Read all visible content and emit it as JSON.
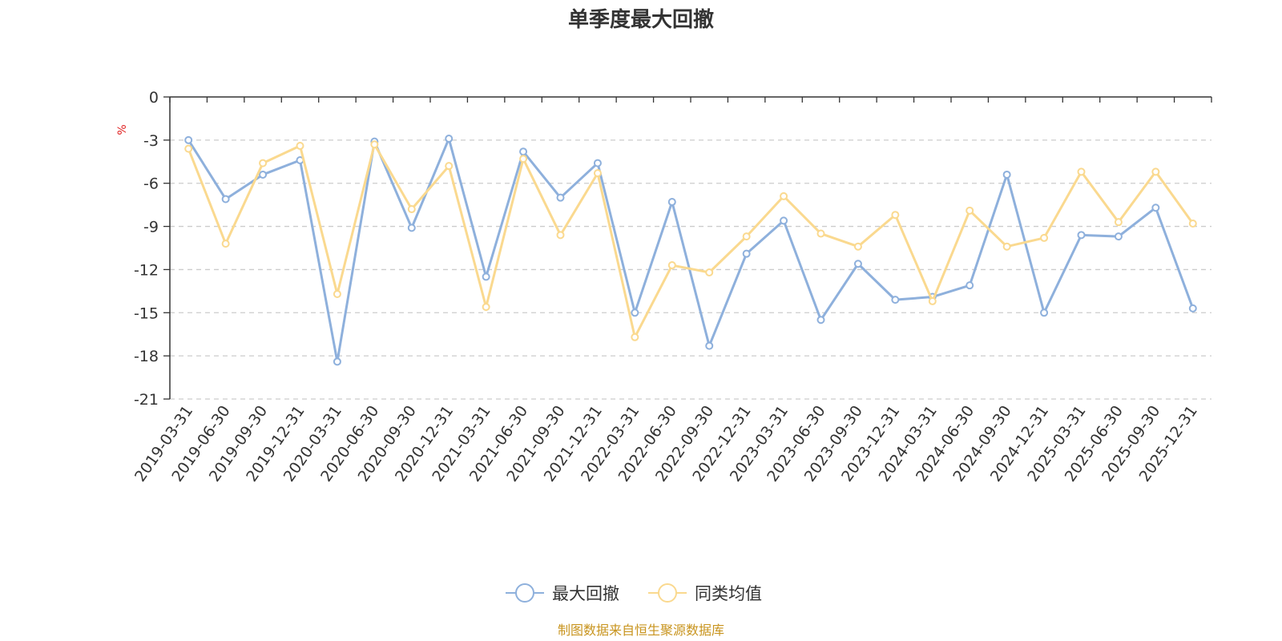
{
  "chart_data": {
    "type": "line",
    "title": "单季度最大回撤",
    "ylabel": "%",
    "ylim": [
      -21,
      0
    ],
    "yticks": [
      0,
      -3,
      -6,
      -9,
      -12,
      -15,
      -18,
      -21
    ],
    "grid": true,
    "legend_position": "bottom-center",
    "categories": [
      "2019-03-31",
      "2019-06-30",
      "2019-09-30",
      "2019-12-31",
      "2020-03-31",
      "2020-06-30",
      "2020-09-30",
      "2020-12-31",
      "2021-03-31",
      "2021-06-30",
      "2021-09-30",
      "2021-12-31",
      "2022-03-31",
      "2022-06-30",
      "2022-09-30",
      "2022-12-31",
      "2023-03-31",
      "2023-06-30",
      "2023-09-30",
      "2023-12-31",
      "2024-03-31",
      "2024-06-30",
      "2024-09-30",
      "2024-12-31",
      "2025-03-31",
      "2025-06-30",
      "2025-09-30",
      "2025-12-31"
    ],
    "series": [
      {
        "name": "最大回撤",
        "color": "#8eb0dc",
        "values": [
          -3.0,
          -7.1,
          -5.4,
          -4.4,
          -18.4,
          -3.1,
          -9.1,
          -2.9,
          -12.5,
          -3.8,
          -7.0,
          -4.6,
          -15.0,
          -7.3,
          -17.3,
          -10.9,
          -8.6,
          -15.5,
          -11.6,
          -14.1,
          -13.9,
          -13.1,
          -5.4,
          -15.0,
          -9.6,
          -9.7,
          -7.7,
          -14.7
        ]
      },
      {
        "name": "同类均值",
        "color": "#fad98f",
        "values": [
          -3.6,
          -10.2,
          -4.6,
          -3.4,
          -13.7,
          -3.3,
          -7.8,
          -4.8,
          -14.6,
          -4.3,
          -9.6,
          -5.3,
          -16.7,
          -11.7,
          -12.2,
          -9.7,
          -6.9,
          -9.5,
          -10.4,
          -8.2,
          -14.2,
          -7.9,
          -10.4,
          -9.8,
          -5.2,
          -8.7,
          -5.2,
          -8.8
        ]
      }
    ],
    "source_note": "制图数据来自恒生聚源数据库",
    "source_color": "#c8941e",
    "unit_color": "#e02020"
  }
}
